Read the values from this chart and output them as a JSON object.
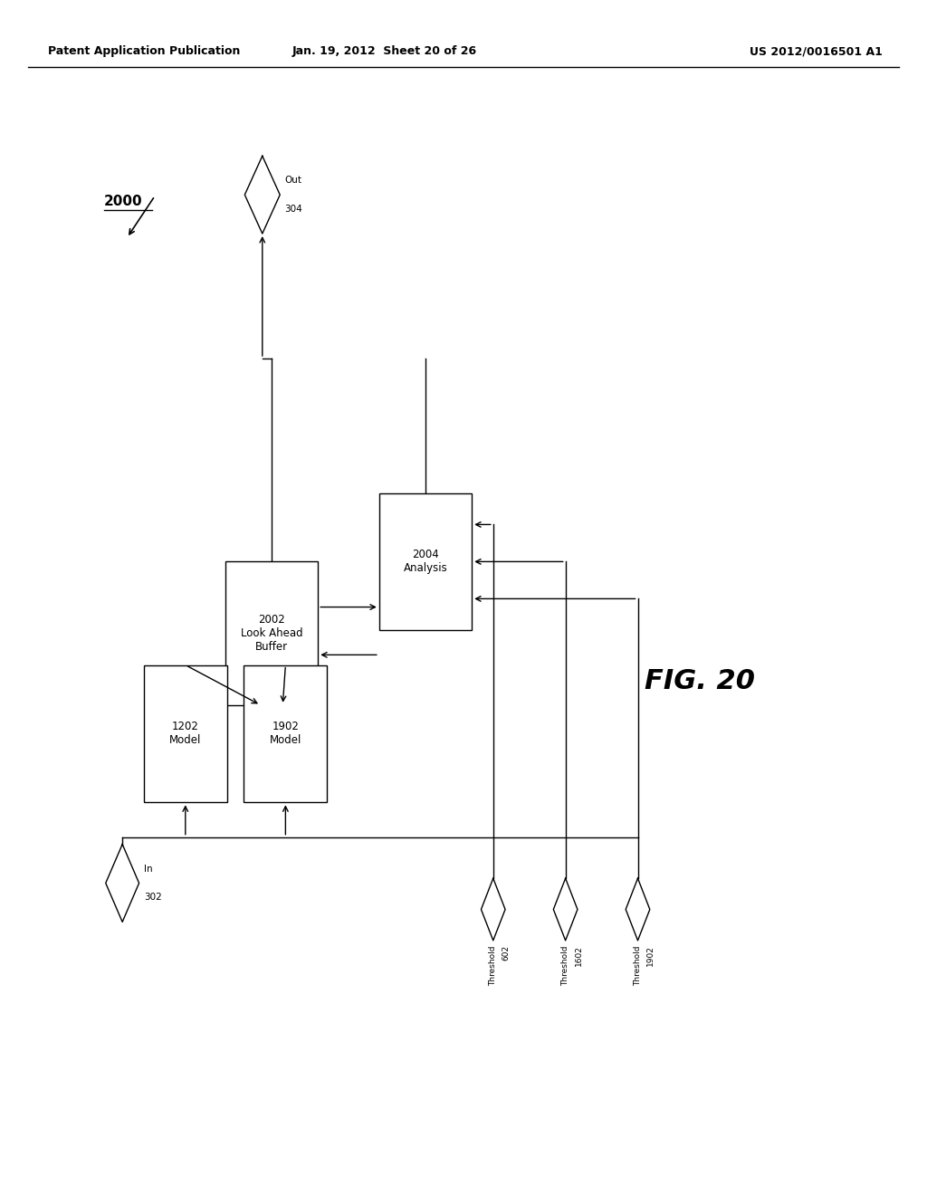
{
  "page_header_left": "Patent Application Publication",
  "page_header_mid": "Jan. 19, 2012  Sheet 20 of 26",
  "page_header_right": "US 2012/0016501 A1",
  "fig_label": "FIG. 20",
  "background_color": "#ffffff"
}
